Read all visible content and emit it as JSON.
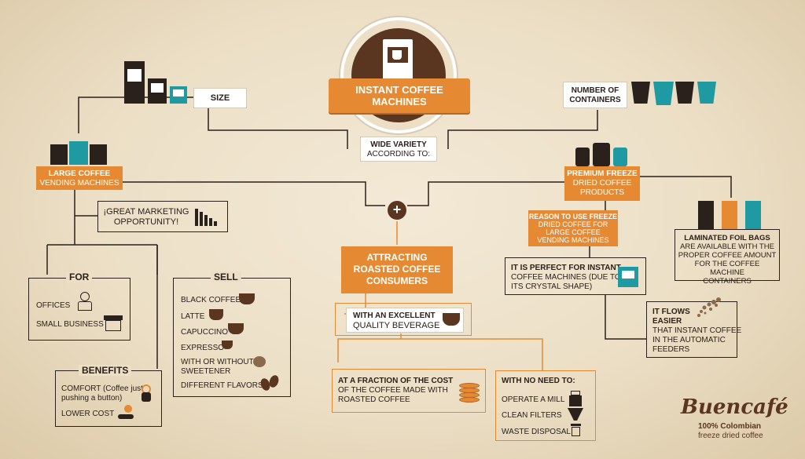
{
  "title": {
    "line1": "INSTANT COFFEE",
    "line2": "MACHINES"
  },
  "variety": {
    "line1": "WIDE VARIETY",
    "line2": "ACCORDING TO:"
  },
  "size": "SIZE",
  "containers": {
    "line1": "NUMBER OF",
    "line2": "CONTAINERS"
  },
  "large": {
    "line1": "LARGE COFFEE",
    "line2": "VENDING MACHINES"
  },
  "marketing": {
    "line1": "¡GREAT MARKETING",
    "line2": "OPPORTUNITY!"
  },
  "premium": {
    "line1": "PREMIUM FREEZE",
    "line2": "DRIED COFFEE",
    "line3": "PRODUCTS"
  },
  "reason": {
    "line1": "REASON TO USE FREEZE",
    "line2": "DRIED COFFEE FOR",
    "line3": "LARGE COFFEE",
    "line4": "VENDING MACHINES"
  },
  "laminated": {
    "title": "LAMINATED FOIL BAGS",
    "line1": "ARE AVAILABLE WITH THE",
    "line2": "PROPER COFFEE AMOUNT",
    "line3": "FOR THE COFFEE MACHINE",
    "line4": "CONTAINERS"
  },
  "perfect": {
    "line1": "IT IS PERFECT FOR INSTANT",
    "line2": "COFFEE MACHINES (DUE TO",
    "line3": "ITS CRYSTAL SHAPE)"
  },
  "flows": {
    "title1": "IT FLOWS",
    "title2": "EASIER",
    "line1": "THAT INSTANT COFFEE",
    "line2": "IN THE AUTOMATIC",
    "line3": "FEEDERS"
  },
  "attracting": {
    "line1": "ATTRACTING",
    "line2": "ROASTED COFFEE",
    "line3": "CONSUMERS"
  },
  "excellent": {
    "line1": "WITH AN EXCELLENT",
    "line2": "QUALITY BEVERAGE"
  },
  "fraction": {
    "line1": "AT A FRACTION OF THE COST",
    "line2": "OF THE COFFEE MADE WITH",
    "line3": "ROASTED COFFEE"
  },
  "noneed": {
    "title": "WITH NO NEED TO:",
    "items": [
      "OPERATE A MILL",
      "CLEAN FILTERS",
      "WASTE DISPOSAL"
    ]
  },
  "for": {
    "title": "FOR",
    "items": [
      "OFFICES",
      "SMALL BUSINESS"
    ]
  },
  "sell": {
    "title": "SELL",
    "items": [
      "BLACK COFFEE",
      "LATTE",
      "CAPUCCINO",
      "EXPRESSO",
      "WITH OR WITHOUT",
      "SWEETENER",
      "DIFFERENT FLAVORS"
    ]
  },
  "benefits": {
    "title": "BENEFITS",
    "comfort1": "COMFORT (Coffee just",
    "comfort2": "pushing a button)",
    "lower": "LOWER COST"
  },
  "brand": {
    "name": "Buencafé",
    "line1": "100% Colombian",
    "line2": "freeze dried coffee"
  },
  "colors": {
    "orange": "#e58a33",
    "brown": "#5a3520",
    "dark": "#2b211c",
    "teal": "#1f9aa2",
    "paper": "#ecdfc6"
  }
}
